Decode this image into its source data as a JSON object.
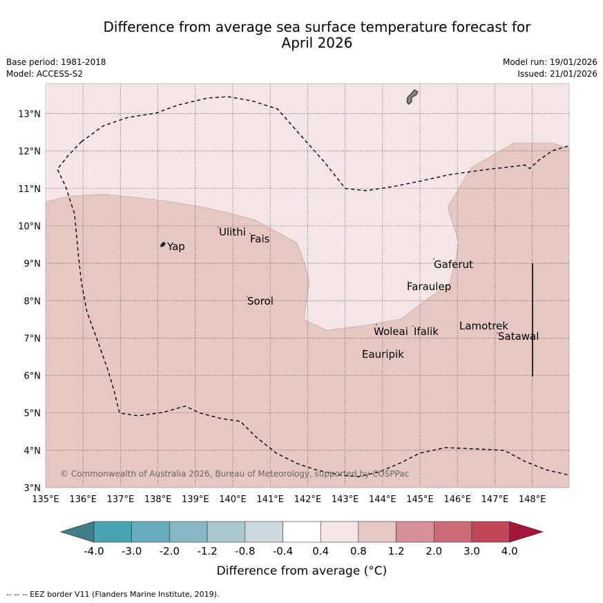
{
  "title_line1": "Difference from average sea surface temperature forecast for",
  "title_line2": "April 2026",
  "meta": {
    "base_period": "Base period: 1981-2018",
    "model": "Model: ACCESS-S2",
    "model_run": "Model run: 19/01/2026",
    "issued": "Issued: 21/01/2026"
  },
  "map": {
    "lon_labels": [
      "135°E",
      "136°E",
      "137°E",
      "138°E",
      "139°E",
      "140°E",
      "141°E",
      "142°E",
      "143°E",
      "144°E",
      "145°E",
      "146°E",
      "147°E",
      "148°E"
    ],
    "lat_labels": [
      "13°N",
      "12°N",
      "11°N",
      "10°N",
      "9°N",
      "8°N",
      "7°N",
      "6°N",
      "5°N",
      "4°N",
      "3°N"
    ],
    "places": [
      "Yap",
      "Ulithi",
      "Fais",
      "Gaferut",
      "Faraulep",
      "Sorol",
      "Woleai",
      "Ifalik",
      "Lamotrek",
      "Satawal",
      "Eauripik"
    ],
    "copyright": "© Commonwealth of Australia 2026, Bureau of Meteorology, supported by COSPPac",
    "colors": {
      "band_0_4_0_8": "#f4e6e4",
      "band_0_8_1_2": "#e7c7c2",
      "land": "#8a7e7c"
    }
  },
  "colorbar": {
    "label": "Difference from average (°C)",
    "ticks": [
      "-4.0",
      "-3.0",
      "-2.0",
      "-1.2",
      "-0.8",
      "-0.4",
      "0.4",
      "0.8",
      "1.2",
      "2.0",
      "3.0",
      "4.0"
    ],
    "colors": [
      "#3f7f88",
      "#48a3b3",
      "#68adbb",
      "#87b8c3",
      "#a9c8ce",
      "#c9d9dc",
      "#ffffff",
      "#f4e6e4",
      "#e7c7c2",
      "#d6909a",
      "#cd6b77",
      "#c04757",
      "#a4173a"
    ]
  },
  "footer": "-- -- -- EEZ border V11 (Flanders Marine Institute, 2019)."
}
